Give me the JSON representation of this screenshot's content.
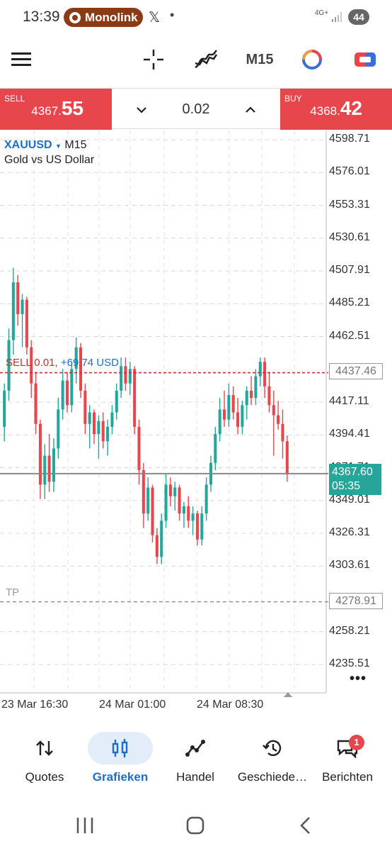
{
  "status_bar": {
    "time": "13:39",
    "notification_app": "Monolink",
    "x_glyph": "𝕏",
    "dot": "•",
    "network": "4G+",
    "battery": "44"
  },
  "toolbar": {
    "timeframe": "M15",
    "icons": [
      "menu-icon",
      "crosshair-icon",
      "indicators-icon",
      "clock-icon",
      "trade-icon"
    ]
  },
  "trade_bar": {
    "sell_label": "SELL",
    "sell_price_small": "4367.",
    "sell_price_big": "55",
    "buy_label": "BUY",
    "buy_price_small": "4368.",
    "buy_price_big": "42",
    "volume": "0.02",
    "down_arrow": "⌄",
    "up_arrow": "⌃"
  },
  "chart": {
    "symbol": "XAUUSD",
    "timeframe": "M15",
    "description": "Gold vs US Dollar",
    "position_label": "SELL 0.01,",
    "position_pnl": "+69.74 USD",
    "tp_label": "TP",
    "position_price": "4437.46",
    "tp_price": "4278.91",
    "current_price": "4367.60",
    "countdown": "05:35",
    "more": "•••",
    "colors": {
      "bull": "#26a69a",
      "bear": "#e8464d",
      "position_line": "#c53030",
      "bid_line": "#888888"
    }
  },
  "chart_data": {
    "type": "candlestick",
    "title": "XAUUSD M15",
    "y_ticks": [
      "4598.71",
      "4576.01",
      "4553.31",
      "4530.61",
      "4507.91",
      "4485.21",
      "4462.51",
      "4417.11",
      "4394.41",
      "4371.71",
      "4349.01",
      "4326.31",
      "4303.61",
      "4258.21",
      "4235.51"
    ],
    "x_ticks": [
      "23 Mar 16:30",
      "24 Mar 01:00",
      "24 Mar 08:30"
    ],
    "ylim": [
      4225,
      4605
    ],
    "grid": true,
    "candles": [
      [
        4400,
        4430,
        4390,
        4425
      ],
      [
        4425,
        4468,
        4418,
        4460
      ],
      [
        4460,
        4510,
        4450,
        4500
      ],
      [
        4500,
        4505,
        4470,
        4478
      ],
      [
        4478,
        4492,
        4455,
        4488
      ],
      [
        4488,
        4490,
        4450,
        4455
      ],
      [
        4455,
        4460,
        4420,
        4430
      ],
      [
        4430,
        4438,
        4395,
        4402
      ],
      [
        4402,
        4405,
        4350,
        4360
      ],
      [
        4360,
        4388,
        4350,
        4380
      ],
      [
        4380,
        4395,
        4355,
        4362
      ],
      [
        4362,
        4392,
        4355,
        4385
      ],
      [
        4385,
        4420,
        4378,
        4412
      ],
      [
        4412,
        4440,
        4405,
        4432
      ],
      [
        4432,
        4438,
        4410,
        4415
      ],
      [
        4415,
        4445,
        4410,
        4440
      ],
      [
        4440,
        4462,
        4430,
        4455
      ],
      [
        4455,
        4458,
        4420,
        4425
      ],
      [
        4425,
        4430,
        4395,
        4402
      ],
      [
        4402,
        4415,
        4385,
        4410
      ],
      [
        4410,
        4412,
        4388,
        4395
      ],
      [
        4395,
        4408,
        4378,
        4404
      ],
      [
        4404,
        4410,
        4385,
        4390
      ],
      [
        4390,
        4405,
        4380,
        4400
      ],
      [
        4400,
        4415,
        4395,
        4410
      ],
      [
        4410,
        4430,
        4405,
        4425
      ],
      [
        4425,
        4448,
        4420,
        4442
      ],
      [
        4442,
        4448,
        4425,
        4430
      ],
      [
        4430,
        4445,
        4422,
        4440
      ],
      [
        4440,
        4442,
        4395,
        4400
      ],
      [
        4400,
        4405,
        4360,
        4370
      ],
      [
        4370,
        4375,
        4330,
        4340
      ],
      [
        4340,
        4365,
        4335,
        4358
      ],
      [
        4358,
        4360,
        4320,
        4325
      ],
      [
        4325,
        4330,
        4305,
        4310
      ],
      [
        4310,
        4340,
        4305,
        4335
      ],
      [
        4335,
        4368,
        4330,
        4360
      ],
      [
        4360,
        4365,
        4345,
        4352
      ],
      [
        4352,
        4362,
        4342,
        4358
      ],
      [
        4358,
        4360,
        4335,
        4340
      ],
      [
        4340,
        4348,
        4330,
        4345
      ],
      [
        4345,
        4352,
        4330,
        4335
      ],
      [
        4335,
        4345,
        4325,
        4340
      ],
      [
        4340,
        4342,
        4318,
        4322
      ],
      [
        4322,
        4345,
        4318,
        4340
      ],
      [
        4340,
        4365,
        4335,
        4360
      ],
      [
        4360,
        4380,
        4355,
        4375
      ],
      [
        4375,
        4400,
        4370,
        4395
      ],
      [
        4395,
        4420,
        4390,
        4412
      ],
      [
        4412,
        4425,
        4400,
        4405
      ],
      [
        4405,
        4430,
        4400,
        4422
      ],
      [
        4422,
        4428,
        4405,
        4410
      ],
      [
        4410,
        4420,
        4395,
        4400
      ],
      [
        4400,
        4418,
        4395,
        4415
      ],
      [
        4415,
        4428,
        4405,
        4425
      ],
      [
        4425,
        4435,
        4415,
        4420
      ],
      [
        4420,
        4440,
        4415,
        4435
      ],
      [
        4435,
        4448,
        4428,
        4445
      ],
      [
        4445,
        4448,
        4420,
        4428
      ],
      [
        4428,
        4438,
        4410,
        4415
      ],
      [
        4415,
        4425,
        4380,
        4408
      ],
      [
        4408,
        4418,
        4398,
        4402
      ],
      [
        4402,
        4412,
        4378,
        4390
      ],
      [
        4390,
        4394,
        4362,
        4367
      ]
    ]
  },
  "bottom_nav": {
    "items": [
      {
        "label": "Quotes",
        "icon": "quotes-icon"
      },
      {
        "label": "Grafieken",
        "icon": "charts-icon"
      },
      {
        "label": "Handel",
        "icon": "trade-line-icon"
      },
      {
        "label": "Geschiede…",
        "icon": "history-icon"
      },
      {
        "label": "Berichten",
        "icon": "messages-icon"
      }
    ],
    "badge": "1"
  }
}
